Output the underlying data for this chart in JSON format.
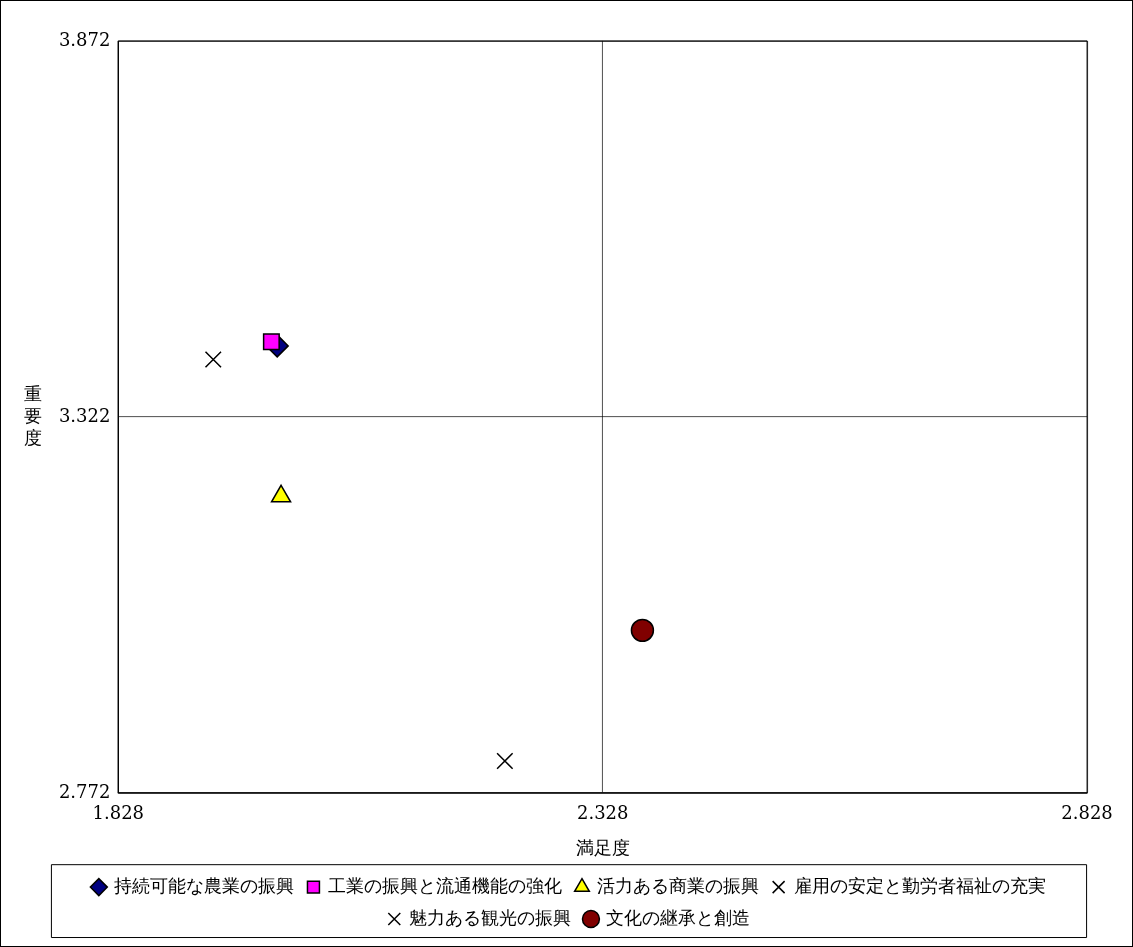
{
  "chart_data": {
    "type": "scatter",
    "xlabel": "満足度",
    "ylabel": "重要度",
    "xlim": [
      1.828,
      2.828
    ],
    "xticks": [
      1.828,
      2.328,
      2.828
    ],
    "ylim": [
      2.772,
      3.872
    ],
    "yticks": [
      2.772,
      3.322,
      3.872
    ],
    "grid": true,
    "legend": "bottom",
    "series": [
      {
        "name": "持続可能な農業の振興",
        "color": "#000080",
        "marker": "diamond",
        "x": [
          1.992
        ],
        "values": [
          3.426
        ]
      },
      {
        "name": "工業の振興と流通機能の強化",
        "color": "#ff00ff",
        "marker": "square",
        "x": [
          1.986
        ],
        "values": [
          3.432
        ]
      },
      {
        "name": "活力ある商業の振興",
        "color": "#ffff00",
        "marker": "triangle",
        "x": [
          1.996
        ],
        "values": [
          3.206
        ]
      },
      {
        "name": "雇用の安定と勤労者福祉の充実",
        "color": "#000000",
        "marker": "cross",
        "x": [
          1.926
        ],
        "values": [
          3.406
        ]
      },
      {
        "name": "魅力ある観光の振興",
        "color": "#000000",
        "marker": "cross",
        "x": [
          2.227
        ],
        "values": [
          2.819
        ]
      },
      {
        "name": "文化の継承と創造",
        "color": "#800000",
        "marker": "circle",
        "x": [
          2.369
        ],
        "values": [
          3.01
        ]
      }
    ]
  }
}
